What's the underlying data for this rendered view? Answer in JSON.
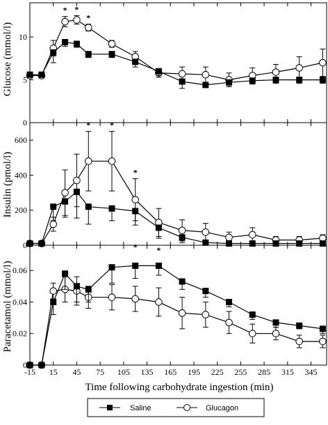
{
  "chart_data": {
    "type": "line",
    "xlabel": "Time following carbohydrate ingestion (min)",
    "xlim": [
      -15,
      365
    ],
    "xticks": [
      -15,
      15,
      45,
      75,
      105,
      135,
      165,
      195,
      225,
      255,
      285,
      315,
      345
    ],
    "x": [
      -15,
      0,
      15,
      30,
      45,
      60,
      90,
      120,
      150,
      180,
      210,
      240,
      270,
      300,
      330,
      360
    ],
    "legend": {
      "placement": "bottom-center",
      "entries": [
        {
          "label": "Saline",
          "marker": "filled-square"
        },
        {
          "label": "Glucagon",
          "marker": "open-circle"
        }
      ]
    },
    "panels": [
      {
        "id": "glucose",
        "ylabel": "Glucose (mmol/l)",
        "ylim": [
          0,
          14
        ],
        "yticks": [
          0,
          5,
          10
        ],
        "series": [
          {
            "name": "Saline",
            "values": [
              5.6,
              5.6,
              8.2,
              9.4,
              9.2,
              8.0,
              8.0,
              7.1,
              6.0,
              4.8,
              4.4,
              4.7,
              4.9,
              5.0,
              5.0,
              5.0
            ],
            "errors": [
              0.3,
              0.3,
              1.2,
              0.5,
              0.4,
              0.4,
              0.4,
              0.6,
              0.5,
              0.8,
              0.3,
              0.5,
              0.4,
              0.4,
              0.4,
              0.4
            ]
          },
          {
            "name": "Glucagon",
            "values": [
              5.5,
              5.5,
              8.7,
              11.8,
              12.0,
              11.1,
              9.2,
              7.7,
              5.8,
              5.7,
              5.6,
              5.0,
              5.5,
              5.9,
              6.4,
              7.0
            ],
            "errors": [
              0.3,
              0.3,
              0.9,
              0.6,
              0.5,
              0.4,
              0.4,
              0.6,
              0.5,
              0.8,
              0.9,
              0.8,
              0.9,
              0.9,
              1.3,
              1.6
            ]
          }
        ],
        "annotations": [
          {
            "x": 30,
            "text": "*"
          },
          {
            "x": 45,
            "text": "*"
          },
          {
            "x": 60,
            "text": "*"
          }
        ]
      },
      {
        "id": "insulin",
        "ylabel": "Insulin (pmol/l)",
        "ylim": [
          0,
          700
        ],
        "yticks": [
          0,
          200,
          400,
          600
        ],
        "series": [
          {
            "name": "Saline",
            "values": [
              10,
              10,
              220,
              250,
              305,
              220,
              210,
              195,
              100,
              45,
              15,
              10,
              10,
              10,
              10,
              10
            ],
            "errors": [
              5,
              5,
              80,
              90,
              150,
              100,
              70,
              80,
              60,
              30,
              10,
              5,
              5,
              5,
              5,
              5
            ]
          },
          {
            "name": "Glucagon",
            "values": [
              10,
              10,
              120,
              300,
              370,
              480,
              480,
              260,
              130,
              85,
              75,
              45,
              60,
              30,
              30,
              40
            ],
            "errors": [
              5,
              5,
              40,
              130,
              150,
              170,
              170,
              120,
              80,
              60,
              50,
              30,
              40,
              20,
              20,
              20
            ]
          }
        ],
        "annotations": [
          {
            "x": 60,
            "text": "*"
          },
          {
            "x": 90,
            "text": "*"
          },
          {
            "x": 120,
            "text": "*"
          }
        ]
      },
      {
        "id": "paracetamol",
        "ylabel": "Paracetamol (mmol/l)",
        "ylim": [
          0,
          0.076
        ],
        "yticks": [
          0,
          0.02,
          0.04,
          0.06
        ],
        "ytick_labels": [
          "0",
          "0.02",
          "0.04",
          "0.06"
        ],
        "series": [
          {
            "name": "Saline",
            "values": [
              0,
              0,
              0.04,
              0.058,
              0.05,
              0.048,
              0.062,
              0.063,
              0.063,
              0.053,
              0.047,
              0.04,
              0.032,
              0.027,
              0.025,
              0.023
            ],
            "errors": [
              0,
              0,
              0.008,
              0.01,
              0.01,
              0.008,
              0.01,
              0.008,
              0.006,
              0.005,
              0.004,
              0.003,
              0.003,
              0.003,
              0.002,
              0.003
            ]
          },
          {
            "name": "Glucagon",
            "values": [
              0,
              0,
              0.047,
              0.048,
              0.047,
              0.043,
              0.043,
              0.042,
              0.04,
              0.033,
              0.032,
              0.027,
              0.02,
              0.02,
              0.015,
              0.015
            ],
            "errors": [
              0,
              0,
              0.005,
              0.008,
              0.009,
              0.007,
              0.008,
              0.008,
              0.009,
              0.01,
              0.008,
              0.007,
              0.006,
              0.004,
              0.004,
              0.004
            ]
          }
        ],
        "annotations": [
          {
            "x": 120,
            "text": "*"
          },
          {
            "x": 150,
            "text": "*"
          }
        ]
      }
    ]
  }
}
